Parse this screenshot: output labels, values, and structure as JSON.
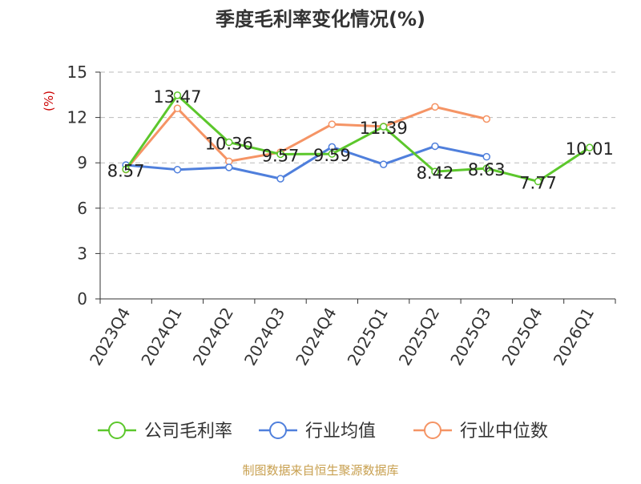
{
  "chart_data": {
    "type": "line",
    "title": "季度毛利率变化情况(%)",
    "ylabel": "(%)",
    "xlabel": "",
    "ylim": [
      0,
      15
    ],
    "yticks": [
      0,
      3,
      6,
      9,
      12,
      15
    ],
    "grid": true,
    "legend_position": "bottom",
    "categories": [
      "2023Q4",
      "2024Q1",
      "2024Q2",
      "2024Q3",
      "2024Q4",
      "2025Q1",
      "2025Q2",
      "2025Q3",
      "2025Q4",
      "2026Q1"
    ],
    "series": [
      {
        "name": "公司毛利率",
        "color": "#5cc72c",
        "values": [
          8.57,
          13.47,
          10.36,
          9.57,
          9.59,
          11.39,
          8.42,
          8.63,
          7.77,
          10.01
        ],
        "labels": [
          "8.57",
          "13.47",
          "10.36",
          "9.57",
          "9.59",
          "11.39",
          "8.42",
          "8.63",
          "7.77",
          "10.01"
        ]
      },
      {
        "name": "行业均值",
        "color": "#4f7fdc",
        "values": [
          8.85,
          8.55,
          8.7,
          7.95,
          10.05,
          8.9,
          10.1,
          9.4,
          null,
          null
        ]
      },
      {
        "name": "行业中位数",
        "color": "#f59465",
        "values": [
          8.55,
          12.6,
          9.1,
          9.7,
          11.55,
          11.4,
          12.7,
          11.9,
          null,
          null
        ]
      }
    ]
  },
  "source_text": "制图数据来自恒生聚源数据库",
  "colors": {
    "title": "#333333",
    "axis": "#333333",
    "grid": "#bbbbbb",
    "ylabel": "#cc0000",
    "source": "#c8a050"
  }
}
